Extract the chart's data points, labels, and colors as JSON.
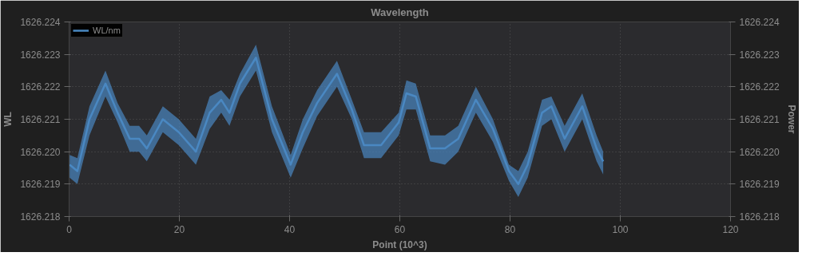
{
  "chart_data": {
    "type": "line",
    "title": "Wavelength",
    "xlabel": "Point (10^3)",
    "ylabel": "WL",
    "y2label": "Power",
    "x": [
      0.1,
      1.5,
      3.7,
      6.6,
      8.8,
      11.0,
      12.7,
      14.1,
      17.0,
      19.9,
      23.0,
      25.5,
      27.6,
      29.1,
      31.0,
      33.9,
      36.8,
      40.2,
      42.4,
      45.0,
      48.6,
      51.3,
      53.5,
      56.6,
      59.8,
      61.2,
      62.9,
      65.5,
      68.2,
      70.6,
      73.8,
      76.9,
      79.8,
      81.5,
      83.2,
      85.8,
      87.5,
      89.9,
      93.1,
      95.7,
      96.9
    ],
    "series": [
      {
        "name": "WL/nm",
        "color": "#4a88c2",
        "values": [
          1626.2196,
          1626.2194,
          1626.221,
          1626.2221,
          1626.2212,
          1626.2204,
          1626.2204,
          1626.2201,
          1626.221,
          1626.2206,
          1626.22,
          1626.2212,
          1626.2216,
          1626.2212,
          1626.2221,
          1626.2229,
          1626.221,
          1626.2196,
          1626.2206,
          1626.2215,
          1626.2224,
          1626.2213,
          1626.2202,
          1626.2202,
          1626.2209,
          1626.2218,
          1626.2217,
          1626.2201,
          1626.2201,
          1626.2204,
          1626.2216,
          1626.2207,
          1626.2194,
          1626.219,
          1626.2196,
          1626.2212,
          1626.2214,
          1626.2204,
          1626.2214,
          1626.2201,
          1626.2197
        ],
        "upper": [
          1626.2199,
          1626.2198,
          1626.2214,
          1626.2225,
          1626.2215,
          1626.2208,
          1626.2208,
          1626.2205,
          1626.2214,
          1626.221,
          1626.2204,
          1626.2217,
          1626.2219,
          1626.2216,
          1626.2224,
          1626.2233,
          1626.2214,
          1626.2199,
          1626.221,
          1626.2219,
          1626.2228,
          1626.2216,
          1626.2206,
          1626.2206,
          1626.2212,
          1626.2222,
          1626.2221,
          1626.2205,
          1626.2205,
          1626.2208,
          1626.222,
          1626.221,
          1626.2196,
          1626.2194,
          1626.22,
          1626.2216,
          1626.2217,
          1626.2208,
          1626.2218,
          1626.2205,
          1626.22
        ],
        "lower": [
          1626.2192,
          1626.219,
          1626.2205,
          1626.2217,
          1626.2209,
          1626.22,
          1626.22,
          1626.2197,
          1626.2206,
          1626.2202,
          1626.2196,
          1626.2207,
          1626.2212,
          1626.2208,
          1626.2217,
          1626.2225,
          1626.2206,
          1626.2192,
          1626.2201,
          1626.2211,
          1626.222,
          1626.221,
          1626.2198,
          1626.2198,
          1626.2205,
          1626.2213,
          1626.2213,
          1626.2197,
          1626.2196,
          1626.22,
          1626.2212,
          1626.2203,
          1626.2191,
          1626.2186,
          1626.2192,
          1626.2208,
          1626.221,
          1626.22,
          1626.221,
          1626.2197,
          1626.2193
        ]
      }
    ],
    "xlim": [
      0,
      120
    ],
    "xticks": [
      0,
      20,
      40,
      60,
      80,
      100,
      120
    ],
    "ylim": [
      1626.218,
      1626.224
    ],
    "yticks": [
      1626.218,
      1626.219,
      {
        "value": 1626.22,
        "label": "1626.220"
      },
      1626.221,
      1626.222,
      1626.223,
      1626.224
    ],
    "y2lim": [
      1626.218,
      1626.224
    ],
    "y2ticks": [
      1626.218,
      1626.219,
      {
        "value": 1626.22,
        "label": "1626.220"
      },
      1626.221,
      1626.222,
      1626.223,
      1626.224
    ],
    "grid": true,
    "legend": "top left",
    "marker": "none",
    "line_style": "solid"
  }
}
